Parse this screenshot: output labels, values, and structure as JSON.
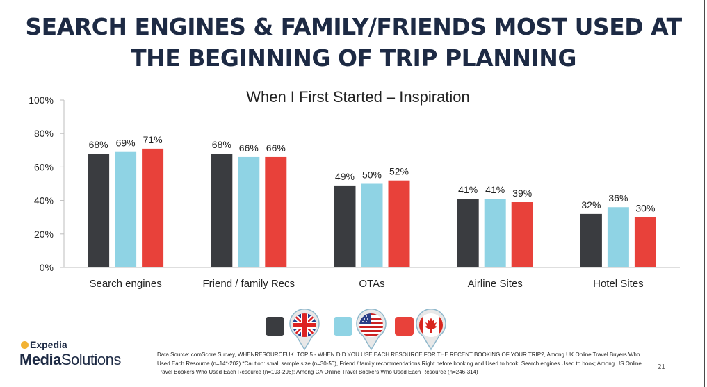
{
  "title_line1": "SEARCH ENGINES & FAMILY/FRIENDS MOST USED AT",
  "title_line2": "THE BEGINNING OF TRIP PLANNING",
  "colors": {
    "uk": "#3a3c40",
    "us": "#8fd3e4",
    "ca": "#e8413a",
    "title": "#1d2a44"
  },
  "chart_data": {
    "type": "bar",
    "title": "When I First Started – Inspiration",
    "categories": [
      "Search engines",
      "Friend / family Recs",
      "OTAs",
      "Airline Sites",
      "Hotel Sites"
    ],
    "series": [
      {
        "name": "UK",
        "color": "#3a3c40",
        "values": [
          68,
          68,
          49,
          41,
          32
        ]
      },
      {
        "name": "US",
        "color": "#8fd3e4",
        "values": [
          69,
          66,
          50,
          41,
          36
        ]
      },
      {
        "name": "CA",
        "color": "#e8413a",
        "values": [
          71,
          66,
          52,
          39,
          30
        ]
      }
    ],
    "ylim": [
      0,
      100
    ],
    "yticks": [
      0,
      20,
      40,
      60,
      80,
      100
    ],
    "ytick_labels": [
      "0%",
      "20%",
      "40%",
      "60%",
      "80%",
      "100%"
    ],
    "value_suffix": "%",
    "grid": false,
    "legend": "bottom-center"
  },
  "legend_icons": [
    "uk-flag-icon",
    "us-flag-icon",
    "canada-flag-icon"
  ],
  "logo": {
    "line1_brand": "Expedia",
    "line2_a": "Media",
    "line2_b": "Solutions"
  },
  "source_text": "Data Source: comScore Survey, WHENRESOURCEUK. TOP 5 - WHEN DID YOU USE EACH RESOURCE FOR THE RECENT BOOKING OF YOUR TRIP?, Among UK Online Travel Buyers Who Used Each Resource (n=14*-202) *Caution: small sample size (n=30-50), Friend / family recommendations Right before booking and Used to book, Search engines Used to book; Among US Online Travel Bookers Who Used Each Resource (n=193-296); Among CA Online Travel Bookers Who Used Each Resource (n=246-314)",
  "page_number": "21"
}
